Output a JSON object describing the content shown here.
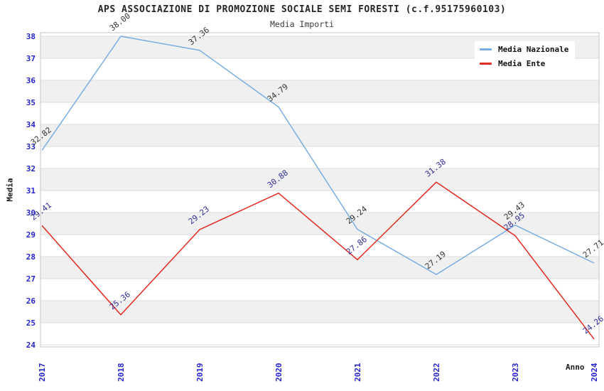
{
  "chart_data": {
    "type": "line",
    "title": "APS ASSOCIAZIONE DI PROMOZIONE SOCIALE SEMI FORESTI (c.f.95175960103)",
    "subtitle": "Media Importi",
    "xlabel": "Anno",
    "ylabel": "Media",
    "categories": [
      "2017",
      "2018",
      "2019",
      "2020",
      "2021",
      "2022",
      "2023",
      "2024"
    ],
    "series": [
      {
        "name": "Media Nazionale",
        "color": "#79ade2",
        "label_color": "#333333",
        "values": [
          32.82,
          38.0,
          37.36,
          34.79,
          29.24,
          27.19,
          29.43,
          27.71
        ]
      },
      {
        "name": "Media Ente",
        "color": "#e02b20",
        "label_color": "#2f2f99",
        "values": [
          29.41,
          25.36,
          29.23,
          30.88,
          27.86,
          31.38,
          28.95,
          24.26
        ]
      }
    ],
    "ylim": [
      24,
      38
    ],
    "ytick_step": 1,
    "grid": "horizontal-bands",
    "legend_position": "top-right",
    "style": {
      "band_color": "#f0f0f0",
      "gridline_color": "#dcdcdc",
      "plot_border_color": "#c4c4c4",
      "tick_label_color": "#2424cc"
    }
  }
}
